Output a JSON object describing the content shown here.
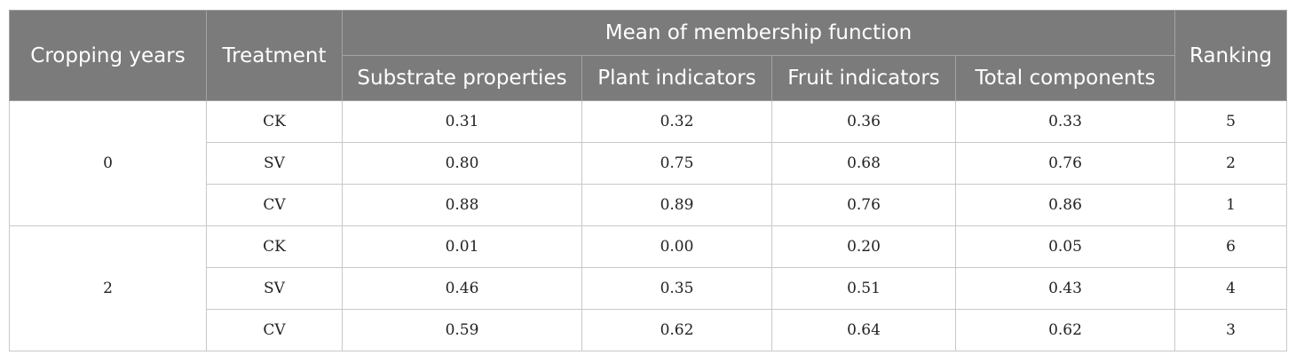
{
  "table": {
    "headers": {
      "cropping_years": "Cropping years",
      "treatment": "Treatment",
      "group": "Mean of membership function",
      "substrate": "Substrate properties",
      "plant": "Plant indicators",
      "fruit": "Fruit indicators",
      "total": "Total components",
      "ranking": "Ranking"
    },
    "groups": [
      {
        "year": "0",
        "rows": [
          {
            "treatment": "CK",
            "substrate": "0.31",
            "plant": "0.32",
            "fruit": "0.36",
            "total": "0.33",
            "ranking": "5"
          },
          {
            "treatment": "SV",
            "substrate": "0.80",
            "plant": "0.75",
            "fruit": "0.68",
            "total": "0.76",
            "ranking": "2"
          },
          {
            "treatment": "CV",
            "substrate": "0.88",
            "plant": "0.89",
            "fruit": "0.76",
            "total": "0.86",
            "ranking": "1"
          }
        ]
      },
      {
        "year": "2",
        "rows": [
          {
            "treatment": "CK",
            "substrate": "0.01",
            "plant": "0.00",
            "fruit": "0.20",
            "total": "0.05",
            "ranking": "6"
          },
          {
            "treatment": "SV",
            "substrate": "0.46",
            "plant": "0.35",
            "fruit": "0.51",
            "total": "0.43",
            "ranking": "4"
          },
          {
            "treatment": "CV",
            "substrate": "0.59",
            "plant": "0.62",
            "fruit": "0.64",
            "total": "0.62",
            "ranking": "3"
          }
        ]
      }
    ]
  }
}
